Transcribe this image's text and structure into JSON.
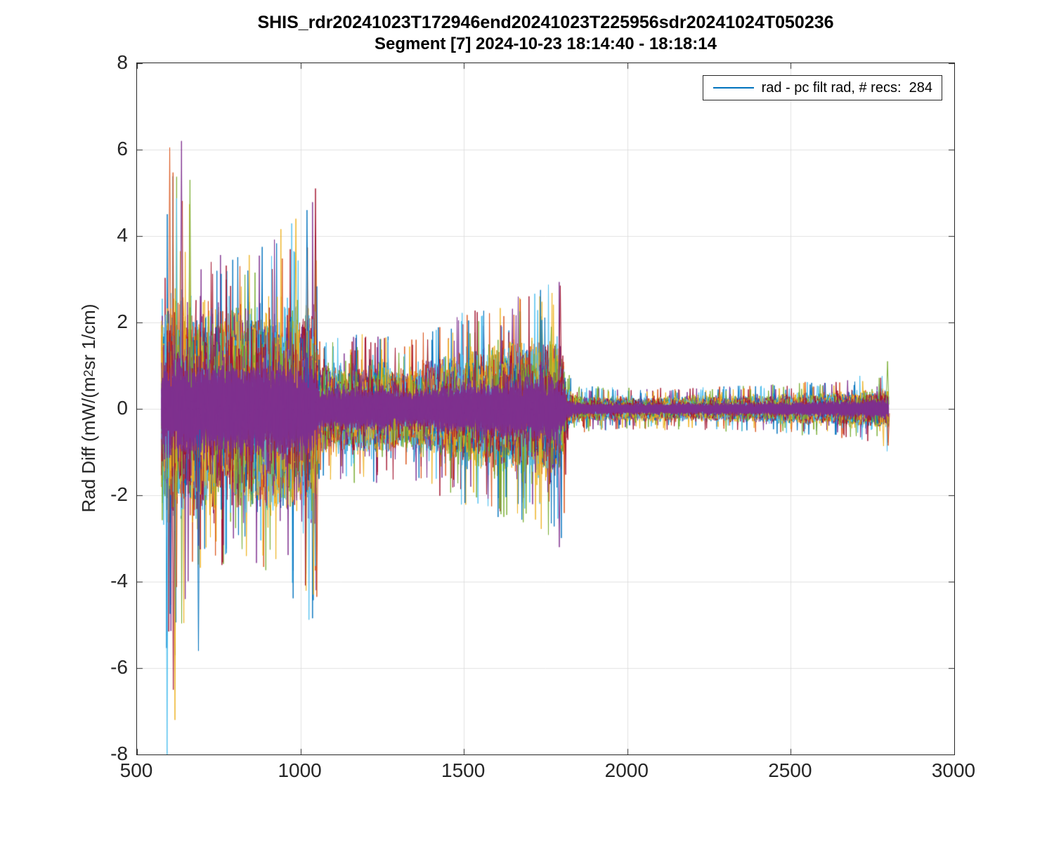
{
  "chart_data": {
    "type": "line",
    "title": "SHIS_rdr20241023T172946end20241023T225956sdr20241024T050236",
    "subtitle": "Segment [7] 2024-10-23 18:14:40 - 18:18:14",
    "xlabel": "",
    "ylabel": {
      "pre": "Rad Diff (mW/(m",
      "sup": "2",
      "post": " sr 1/cm)"
    },
    "xlim": [
      500,
      3000
    ],
    "ylim": [
      -8,
      8
    ],
    "xticks": [
      500,
      1000,
      1500,
      2000,
      2500,
      3000
    ],
    "yticks": [
      -8,
      -6,
      -4,
      -2,
      0,
      2,
      4,
      6,
      8
    ],
    "grid": true,
    "grid_color": "#e0e0e0",
    "axis_color": "#262626",
    "legend": {
      "label": "rad - pc filt rad, # recs:  284",
      "position": "northeast",
      "line_color": "#0072BD"
    },
    "num_records": 284,
    "series_colors": [
      "#0072BD",
      "#D95319",
      "#EDB120",
      "#7E2F8E",
      "#77AC30",
      "#4DBEEE",
      "#A2142F"
    ],
    "core_color": "#7E2F8E",
    "x_range_data": [
      575,
      2800
    ],
    "envelope_note": "piecewise [x, dense-band half-width, spike max] in data units",
    "envelope": [
      [
        575,
        2.4,
        5.2
      ],
      [
        600,
        2.6,
        6.2
      ],
      [
        650,
        2.5,
        5.0
      ],
      [
        700,
        2.4,
        3.8
      ],
      [
        800,
        2.4,
        3.5
      ],
      [
        900,
        2.5,
        3.9
      ],
      [
        1000,
        2.4,
        4.6
      ],
      [
        1045,
        2.5,
        5.1
      ],
      [
        1058,
        1.05,
        1.6
      ],
      [
        1150,
        1.05,
        1.7
      ],
      [
        1250,
        1.1,
        1.8
      ],
      [
        1320,
        0.95,
        1.5
      ],
      [
        1420,
        1.15,
        2.0
      ],
      [
        1520,
        1.35,
        2.3
      ],
      [
        1620,
        1.55,
        2.55
      ],
      [
        1720,
        1.6,
        2.7
      ],
      [
        1790,
        1.75,
        3.1
      ],
      [
        1803,
        1.3,
        3.2
      ],
      [
        1815,
        0.5,
        0.9
      ],
      [
        1840,
        0.3,
        0.55
      ],
      [
        2000,
        0.28,
        0.5
      ],
      [
        2200,
        0.29,
        0.5
      ],
      [
        2400,
        0.32,
        0.55
      ],
      [
        2600,
        0.37,
        0.65
      ],
      [
        2700,
        0.42,
        0.75
      ],
      [
        2780,
        0.48,
        0.85
      ],
      [
        2800,
        0.52,
        1.15
      ]
    ],
    "extreme_spikes_note": "[x, y, color_index]",
    "extreme_spikes": [
      [
        592,
        -8.0,
        5
      ],
      [
        616,
        -7.2,
        2
      ],
      [
        600,
        6.05,
        1
      ],
      [
        636,
        6.2,
        3
      ],
      [
        611,
        -6.5,
        6
      ],
      [
        662,
        5.3,
        4
      ],
      [
        688,
        -5.6,
        0
      ],
      [
        986,
        4.4,
        2
      ],
      [
        1020,
        4.6,
        0
      ],
      [
        1040,
        -4.3,
        2
      ],
      [
        1046,
        5.1,
        6
      ],
      [
        1050,
        -4.35,
        1
      ],
      [
        1792,
        -3.2,
        3
      ],
      [
        1795,
        2.85,
        6
      ],
      [
        2796,
        1.1,
        4
      ],
      [
        2798,
        -0.85,
        1
      ]
    ]
  }
}
